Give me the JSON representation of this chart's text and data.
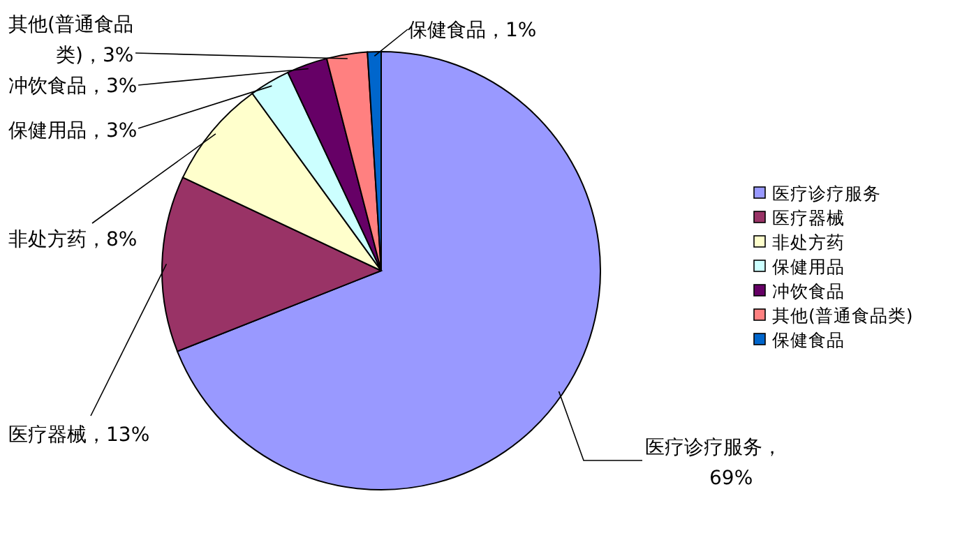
{
  "chart_data": {
    "type": "pie",
    "categories": [
      "医疗诊疗服务",
      "医疗器械",
      "非处方药",
      "保健用品",
      "冲饮食品",
      "其他(普通食品类)",
      "保健食品"
    ],
    "values": [
      69,
      13,
      8,
      3,
      3,
      3,
      1
    ],
    "colors": [
      "#9999ff",
      "#993366",
      "#ffffcc",
      "#ccffff",
      "#660066",
      "#ff8080",
      "#0066cc"
    ],
    "value_labels": [
      "医疗诊疗服务，69%",
      "医疗器械，13%",
      "非处方药，8%",
      "保健用品，3%",
      "冲饮食品，3%",
      "其他(普通食品类)，3%",
      "保健食品，1%"
    ],
    "legend": "right"
  }
}
